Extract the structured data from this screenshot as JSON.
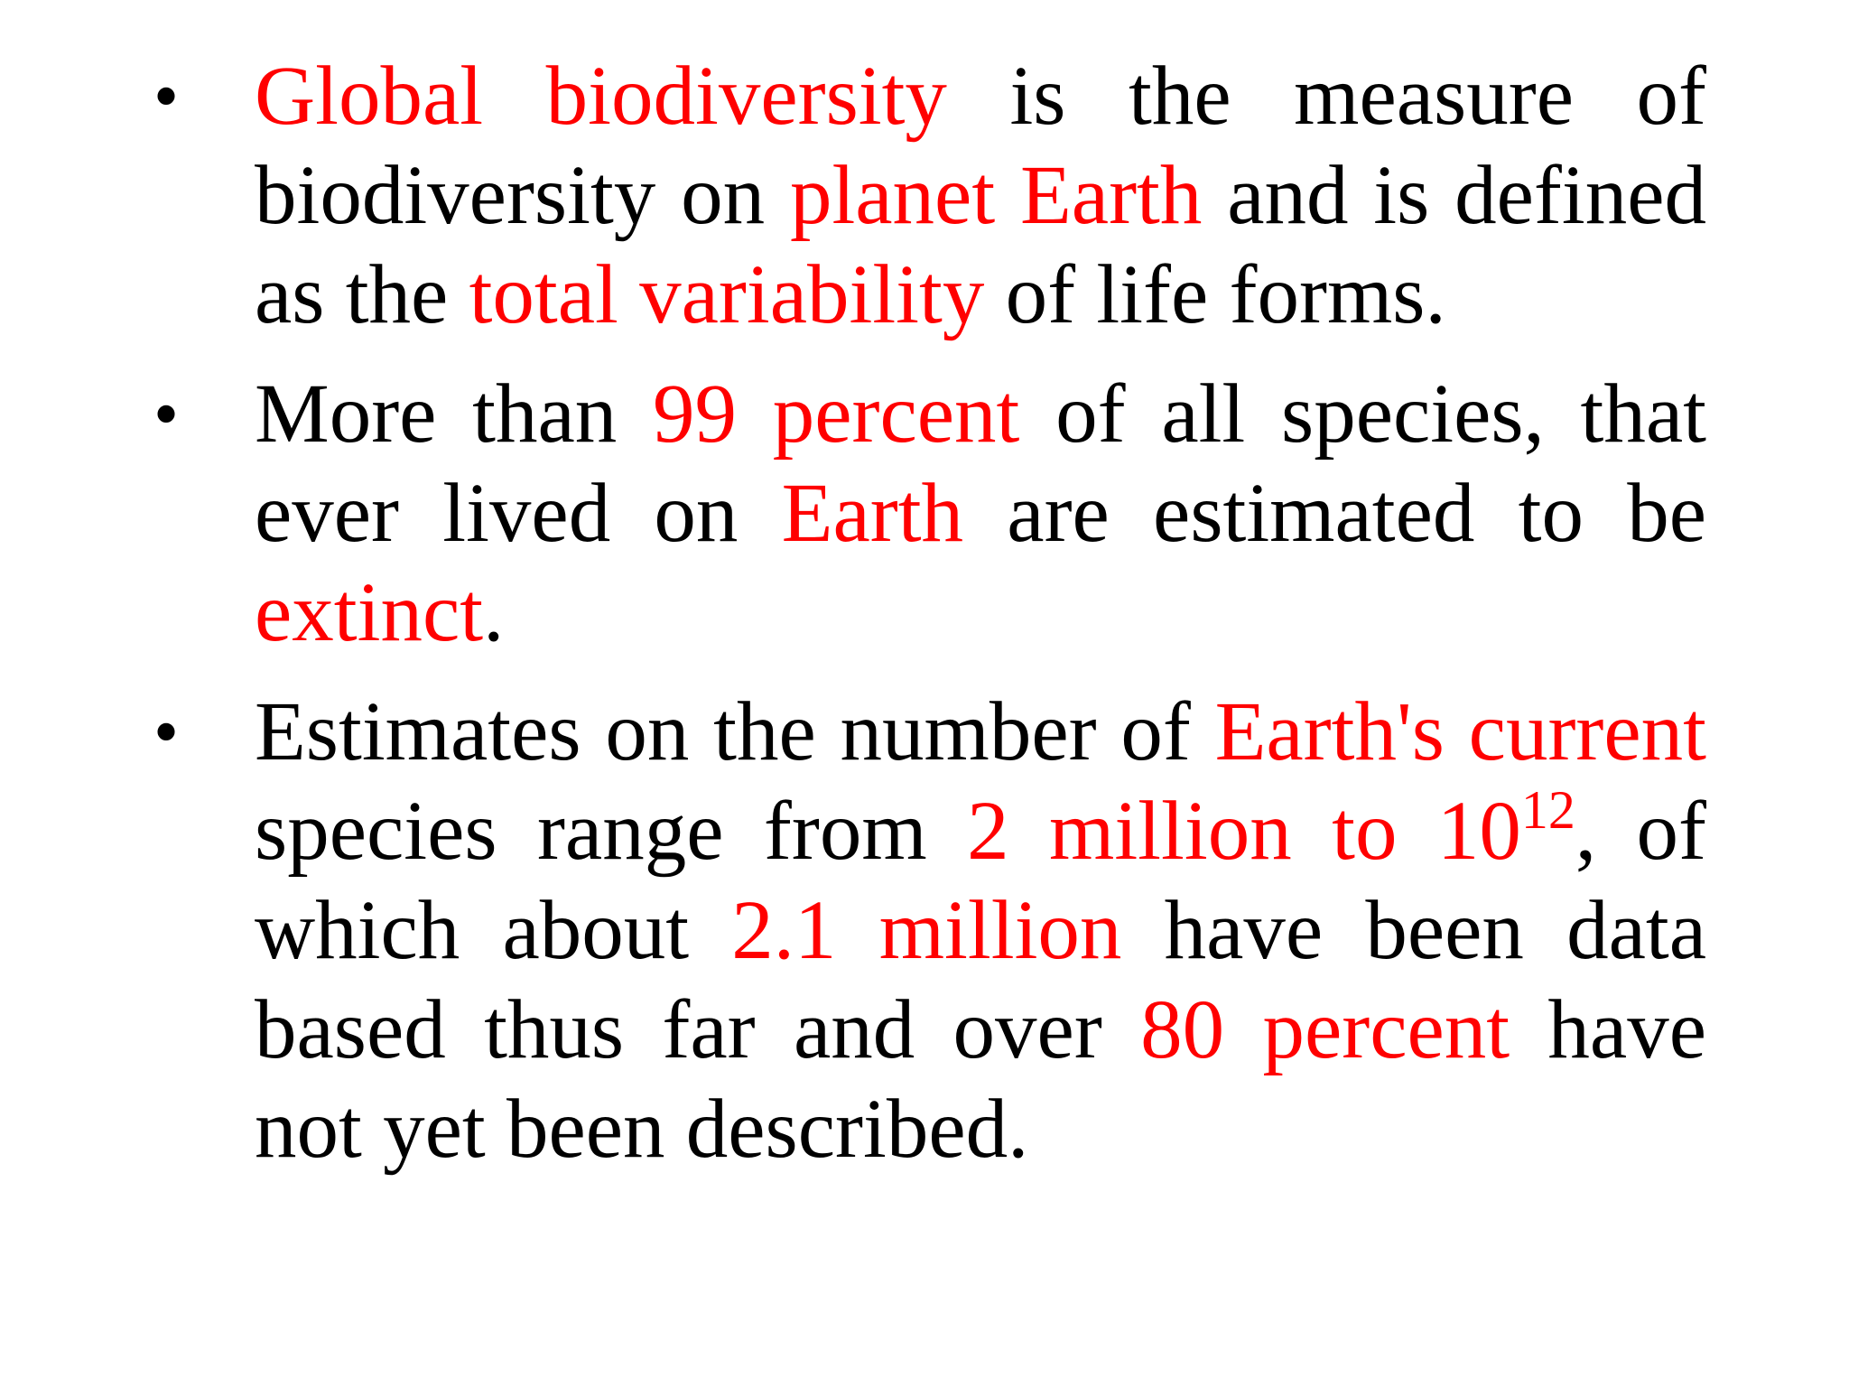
{
  "bullets": {
    "marker": "•",
    "b1": {
      "s1": "Global biodiversity",
      "s2": " is the measure of biodiversity on ",
      "s3": "planet Earth",
      "s4": " and is defined as the ",
      "s5": "total variability",
      "s6": " of life forms."
    },
    "b2": {
      "s1": "More than ",
      "s2": "99 percent",
      "s3": " of all species, that ever lived on ",
      "s4": "Earth",
      "s5": " are estimated to be ",
      "s6": "extinct",
      "s7": "."
    },
    "b3": {
      "s1": "Estimates on the number of ",
      "s2": "Earth's current",
      "s3": " species range from ",
      "s4": "2 million to 10",
      "s5": "12",
      "s6": ", of which about ",
      "s7": "2.1 million",
      "s8": " have been data based thus far and over ",
      "s9": "80 percent",
      "s10": " have not yet been described."
    }
  },
  "colors": {
    "highlight": "#ff0000",
    "text": "#000000",
    "background": "#ffffff"
  }
}
